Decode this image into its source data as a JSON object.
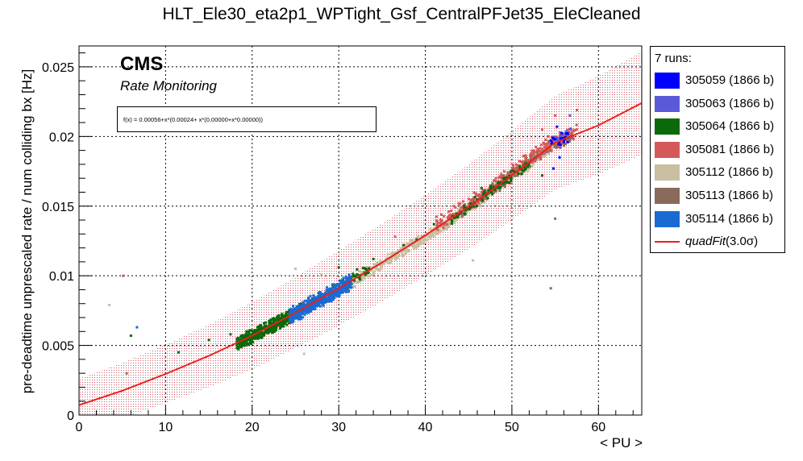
{
  "chart_data": {
    "type": "scatter",
    "title": "HLT_Ele30_eta2p1_WPTight_Gsf_CentralPFJet35_EleCleaned",
    "xlabel": "< PU >",
    "ylabel": "pre-deadtime unprescaled rate / num colliding bx [Hz]",
    "xlim": [
      0,
      65
    ],
    "ylim": [
      0,
      0.0265
    ],
    "x_ticks": [
      "0",
      "10",
      "20",
      "30",
      "40",
      "50",
      "60"
    ],
    "y_ticks": [
      "0",
      "0.005",
      "0.01",
      "0.015",
      "0.02",
      "0.025"
    ],
    "grid": true,
    "legend_position": "outside-right",
    "legend_header": "7 runs:",
    "annotation": {
      "experiment": "CMS",
      "subtitle": "Rate Monitoring",
      "formula": "f(x) = 0.00056+x*(0.00024+ x*(0.00000+x*0.00000))"
    },
    "fit": {
      "label": "quadFit",
      "label_suffix": "(3.0σ)",
      "color": "#e8201e",
      "band_color": "#c2182c",
      "points": [
        [
          0,
          0.00072
        ],
        [
          5,
          0.00175
        ],
        [
          10,
          0.00295
        ],
        [
          15,
          0.00425
        ],
        [
          20,
          0.0057
        ],
        [
          25,
          0.00735
        ],
        [
          30,
          0.0091
        ],
        [
          35,
          0.01095
        ],
        [
          40,
          0.0129
        ],
        [
          45,
          0.01495
        ],
        [
          50,
          0.0172
        ],
        [
          55,
          0.01955
        ],
        [
          60,
          0.0208
        ],
        [
          65,
          0.0224
        ]
      ],
      "band_halfwidth": [
        [
          0,
          0.0019
        ],
        [
          10,
          0.0021
        ],
        [
          20,
          0.0024
        ],
        [
          30,
          0.0027
        ],
        [
          40,
          0.0029
        ],
        [
          50,
          0.0032
        ],
        [
          65,
          0.0037
        ]
      ]
    },
    "series": [
      {
        "name": "305059 (1866 b)",
        "color": "#0000ff",
        "clusters": [
          {
            "x": [
              54.5,
              56.5
            ],
            "y_offset": [
              -0.0004,
              0.0008
            ],
            "n": 22
          }
        ],
        "outliers": [
          [
            55.5,
            0.0185
          ],
          [
            56.0,
            0.0196
          ],
          [
            55.2,
            0.0207
          ],
          [
            54.8,
            0.0177
          ]
        ]
      },
      {
        "name": "305063 (1866 b)",
        "color": "#5a5ad8",
        "clusters": [
          {
            "x": [
              54.8,
              56.8
            ],
            "y_offset": [
              -0.0002,
              0.0006
            ],
            "n": 18
          }
        ],
        "outliers": [
          [
            56.7,
            0.0215
          ],
          [
            55.6,
            0.0192
          ]
        ]
      },
      {
        "name": "305064 (1866 b)",
        "color": "#0a6a0a",
        "clusters": [
          {
            "x": [
              18.2,
              24.8
            ],
            "y_offset": [
              -0.0006,
              0.0005
            ],
            "n": 520
          },
          {
            "x": [
              24.5,
              33.5
            ],
            "y_offset": [
              -0.0005,
              0.0006
            ],
            "n": 120
          },
          {
            "x": [
              43,
              52
            ],
            "y_offset": [
              -0.0005,
              0.0004
            ],
            "n": 110
          }
        ],
        "outliers": [
          [
            6.0,
            0.0057
          ],
          [
            11.5,
            0.0045
          ],
          [
            15.0,
            0.0054
          ],
          [
            17.5,
            0.0058
          ],
          [
            30.0,
            0.0106
          ],
          [
            34.0,
            0.0112
          ],
          [
            37.5,
            0.0122
          ],
          [
            39.0,
            0.0126
          ],
          [
            46.5,
            0.0163
          ],
          [
            51.5,
            0.0176
          ],
          [
            53.5,
            0.0172
          ],
          [
            41.0,
            0.0137
          ],
          [
            49.0,
            0.017
          ]
        ]
      },
      {
        "name": "305081 (1866 b)",
        "color": "#d45a5a",
        "clusters": [
          {
            "x": [
              41,
              57.5
            ],
            "y_offset": [
              -0.0005,
              0.0009
            ],
            "n": 260
          }
        ],
        "outliers": [
          [
            57.5,
            0.0219
          ],
          [
            55.0,
            0.0215
          ],
          [
            53.5,
            0.0205
          ],
          [
            5.1,
            0.01
          ],
          [
            36.5,
            0.0128
          ]
        ]
      },
      {
        "name": "305112 (1866 b)",
        "color": "#c8bea0",
        "clusters": [
          {
            "x": [
              31,
              55
            ],
            "y_offset": [
              -0.0006,
              0.0004
            ],
            "n": 600
          }
        ],
        "outliers": [
          [
            3.5,
            0.0079
          ],
          [
            45.5,
            0.0111
          ],
          [
            26.0,
            0.0044
          ],
          [
            28.0,
            0.0101
          ],
          [
            25.0,
            0.0105
          ]
        ]
      },
      {
        "name": "305113 (1866 b)",
        "color": "#8a6a5a",
        "clusters": [
          {
            "x": [
              44,
              57
            ],
            "y_offset": [
              -0.0005,
              0.0005
            ],
            "n": 240
          }
        ],
        "outliers": [
          [
            54.5,
            0.0091
          ],
          [
            55.0,
            0.0141
          ],
          [
            5.5,
            0.003
          ]
        ]
      },
      {
        "name": "305114 (1866 b)",
        "color": "#1a6ad4",
        "clusters": [
          {
            "x": [
              24.3,
              31.5
            ],
            "y_offset": [
              -0.0007,
              0.0006
            ],
            "n": 520
          }
        ],
        "outliers": [
          [
            6.7,
            0.0063
          ]
        ]
      }
    ]
  }
}
